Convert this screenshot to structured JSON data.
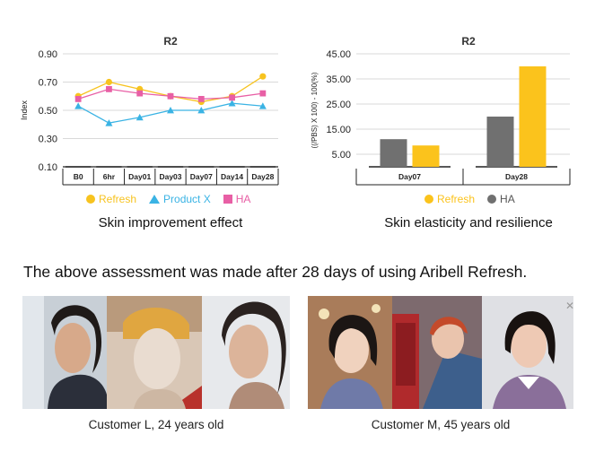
{
  "chart_data": [
    {
      "type": "line",
      "title": "R2",
      "ylabel": "Index",
      "xlabel": "",
      "categories": [
        "B0",
        "6hr",
        "Day01",
        "Day03",
        "Day07",
        "Day14",
        "Day28"
      ],
      "ylim": [
        0.1,
        0.9
      ],
      "yticks": [
        "0.90",
        "0.70",
        "0.50",
        "0.30",
        "0.10"
      ],
      "grid": true,
      "legend_position": "bottom",
      "series": [
        {
          "name": "Refresh",
          "marker": "circle",
          "color": "#f7c31f",
          "values": [
            0.6,
            0.7,
            0.65,
            0.6,
            0.56,
            0.6,
            0.74
          ]
        },
        {
          "name": "Product X",
          "marker": "triangle",
          "color": "#3ab3e4",
          "values": [
            0.53,
            0.41,
            0.45,
            0.5,
            0.5,
            0.55,
            0.53
          ]
        },
        {
          "name": "HA",
          "marker": "square",
          "color": "#e85fa5",
          "values": [
            0.58,
            0.65,
            0.62,
            0.6,
            0.58,
            0.59,
            0.62
          ]
        }
      ]
    },
    {
      "type": "bar",
      "title": "R2",
      "ylabel": "((/PBS) X 100) - 100(%)",
      "xlabel": "",
      "categories": [
        "Day07",
        "Day28"
      ],
      "ylim": [
        0,
        45
      ],
      "yticks": [
        "45.00",
        "35.00",
        "25.00",
        "15.00",
        "5.00"
      ],
      "grid": true,
      "legend_position": "bottom",
      "series": [
        {
          "name": "HA",
          "color": "#707070",
          "values": [
            11,
            20
          ]
        },
        {
          "name": "Refresh",
          "color": "#fbc31c",
          "values": [
            8.5,
            40
          ]
        }
      ],
      "legend_order": [
        "Refresh",
        "HA"
      ]
    }
  ],
  "captions": {
    "left": "Skin improvement effect",
    "right": "Skin elasticity and resilience"
  },
  "statement": "The above assessment was made after 28 days of using Aribell Refresh.",
  "photos": {
    "left_caption": "Customer L, 24 years old",
    "right_caption": "Customer M, 45 years old"
  }
}
